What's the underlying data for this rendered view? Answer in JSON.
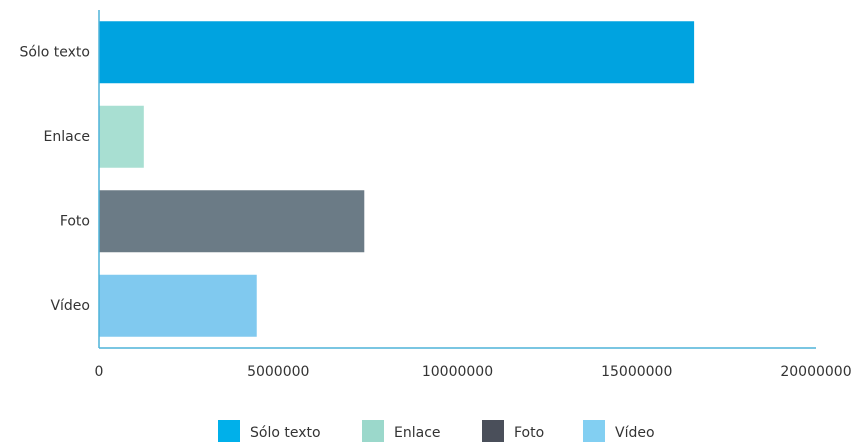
{
  "chart_data": {
    "type": "hbar",
    "categories": [
      "Sólo texto",
      "Enlace",
      "Foto",
      "Vídeo"
    ],
    "values": [
      16600000,
      1250000,
      7400000,
      4400000
    ],
    "colors": [
      "#00a3e0",
      "#a8dfd2",
      "#6b7b86",
      "#80c9ef"
    ],
    "xlim": [
      0,
      20000000
    ],
    "xticks": [
      0,
      5000000,
      10000000,
      15000000,
      20000000
    ],
    "legend": [
      {
        "name": "Sólo texto",
        "color": "#00b0ea"
      },
      {
        "name": "Enlace",
        "color": "#9bd8cb"
      },
      {
        "name": "Foto",
        "color": "#4a4f5a"
      },
      {
        "name": "Vídeo",
        "color": "#82cff2"
      }
    ]
  }
}
